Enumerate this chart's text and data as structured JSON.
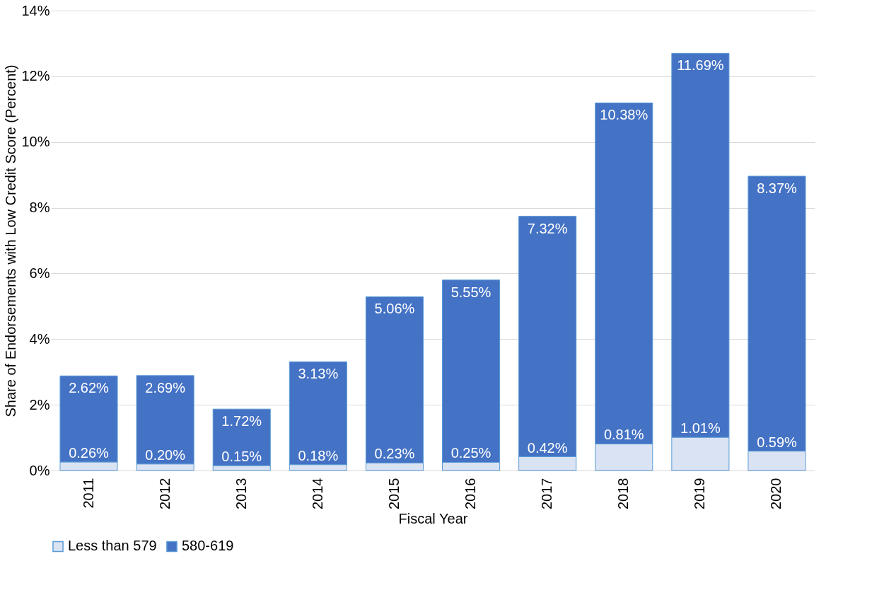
{
  "chart_data": {
    "type": "bar",
    "stacked": true,
    "xlabel": "Fiscal Year",
    "ylabel": "Share of Endorsements with Low Credit Score (Percent)",
    "categories": [
      "2011",
      "2012",
      "2013",
      "2014",
      "2015",
      "2016",
      "2017",
      "2018",
      "2019",
      "2020"
    ],
    "series": [
      {
        "name": "Less than 579",
        "color": "#dae3f3",
        "values": [
          0.26,
          0.2,
          0.15,
          0.18,
          0.23,
          0.25,
          0.42,
          0.81,
          1.01,
          0.59
        ],
        "value_labels": [
          "0.26%",
          "0.20%",
          "0.15%",
          "0.18%",
          "0.23%",
          "0.25%",
          "0.42%",
          "0.81%",
          "1.01%",
          "0.59%"
        ]
      },
      {
        "name": "580-619",
        "color": "#4472c4",
        "values": [
          2.62,
          2.69,
          1.72,
          3.13,
          5.06,
          5.55,
          7.32,
          10.38,
          11.69,
          8.37
        ],
        "value_labels": [
          "2.62%",
          "2.69%",
          "1.72%",
          "3.13%",
          "5.06%",
          "5.55%",
          "7.32%",
          "10.38%",
          "11.69%",
          "8.37%"
        ]
      }
    ],
    "ylim": [
      0,
      14
    ],
    "yticks": [
      {
        "value": 0,
        "label": "0%"
      },
      {
        "value": 2,
        "label": "2%"
      },
      {
        "value": 4,
        "label": "4%"
      },
      {
        "value": 6,
        "label": "6%"
      },
      {
        "value": 8,
        "label": "8%"
      },
      {
        "value": 10,
        "label": "10%"
      },
      {
        "value": 12,
        "label": "12%"
      },
      {
        "value": 14,
        "label": "14%"
      }
    ],
    "grid": "y",
    "legend": "bottom"
  }
}
